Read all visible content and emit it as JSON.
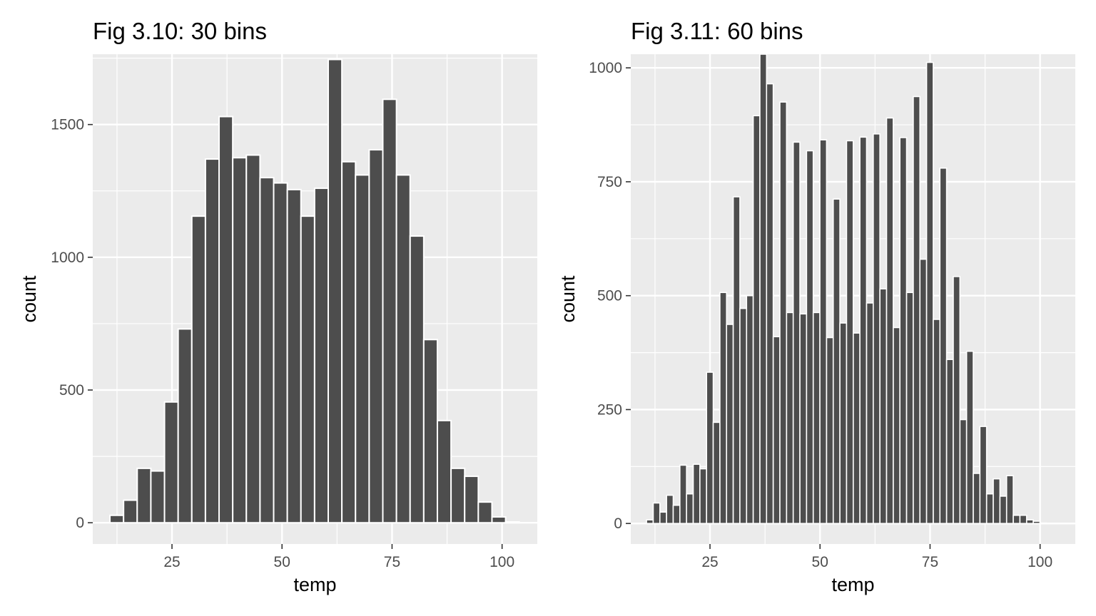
{
  "chart_data": [
    {
      "type": "bar",
      "title": "Fig 3.10: 30 bins",
      "xlabel": "temp",
      "ylabel": "count",
      "xlim": [
        7,
        108
      ],
      "ylim": [
        -80,
        1765
      ],
      "xticks": [
        25,
        50,
        75,
        100
      ],
      "yticks": [
        0,
        500,
        1000,
        1500
      ],
      "grid": true,
      "bin_width": 3.1,
      "bin_starts": [
        10.9,
        14.0,
        17.1,
        20.2,
        23.3,
        26.4,
        29.5,
        32.6,
        35.7,
        38.8,
        41.9,
        45.0,
        48.1,
        51.2,
        54.3,
        57.4,
        60.5,
        63.6,
        66.7,
        69.8,
        72.9,
        76.0,
        79.1,
        82.2,
        85.3,
        88.4,
        91.5,
        94.6,
        97.7,
        100.8
      ],
      "values": [
        28,
        85,
        205,
        195,
        455,
        730,
        1155,
        1370,
        1530,
        1375,
        1385,
        1300,
        1280,
        1255,
        1155,
        1260,
        1745,
        1360,
        1310,
        1405,
        1595,
        1310,
        1080,
        690,
        385,
        205,
        175,
        78,
        22,
        3
      ]
    },
    {
      "type": "bar",
      "title": "Fig 3.11: 60 bins",
      "xlabel": "temp",
      "ylabel": "count",
      "xlim": [
        7,
        108
      ],
      "ylim": [
        -45,
        1030
      ],
      "xticks": [
        25,
        50,
        75,
        100
      ],
      "yticks": [
        0,
        250,
        500,
        750,
        1000
      ],
      "grid": true,
      "bin_width": 1.515,
      "bin_starts": [
        10.58,
        12.1,
        13.61,
        15.13,
        16.64,
        18.16,
        19.67,
        21.19,
        22.7,
        24.22,
        25.73,
        27.25,
        28.76,
        30.28,
        31.79,
        33.31,
        34.82,
        36.34,
        37.85,
        39.37,
        40.88,
        42.4,
        43.91,
        45.43,
        46.94,
        48.46,
        49.97,
        51.49,
        53.0,
        54.52,
        56.03,
        57.55,
        59.06,
        60.58,
        62.09,
        63.61,
        65.12,
        66.64,
        68.15,
        69.67,
        71.18,
        72.7,
        74.21,
        75.73,
        77.24,
        78.76,
        80.27,
        81.79,
        83.3,
        84.82,
        86.33,
        87.85,
        89.36,
        90.88,
        92.39,
        93.91,
        95.42,
        96.94,
        98.45,
        99.97
      ],
      "values": [
        8,
        45,
        25,
        62,
        40,
        128,
        65,
        130,
        120,
        332,
        222,
        507,
        437,
        717,
        472,
        500,
        895,
        1030,
        965,
        410,
        925,
        463,
        837,
        460,
        818,
        463,
        842,
        408,
        712,
        440,
        840,
        418,
        848,
        484,
        855,
        515,
        890,
        430,
        847,
        507,
        937,
        580,
        1012,
        448,
        780,
        360,
        542,
        228,
        378,
        110,
        213,
        65,
        98,
        60,
        105,
        18,
        18,
        8,
        5,
        1
      ]
    }
  ]
}
